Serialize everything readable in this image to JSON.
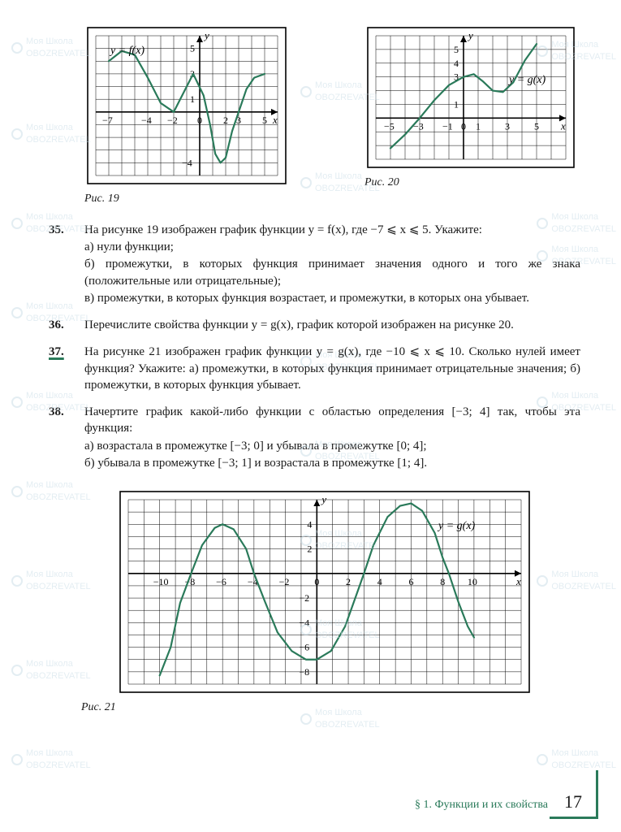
{
  "watermark": {
    "line1": "Моя Школа",
    "line2": "OBOZREVATEL"
  },
  "chart19": {
    "type": "line",
    "caption": "Рис. 19",
    "function_label": "y = f(x)",
    "x_ticks": [
      "−7",
      "−4",
      "−2",
      "0",
      "2",
      "3",
      "5"
    ],
    "y_ticks": [
      "5",
      "3",
      "1",
      "−4"
    ],
    "xlabel": "x",
    "ylabel": "y",
    "xlim": [
      -8,
      6
    ],
    "ylim": [
      -5,
      6
    ],
    "grid_color": "#000000",
    "curve_color": "#2a7a5a",
    "points": [
      [
        -7,
        4
      ],
      [
        -6,
        4.8
      ],
      [
        -5,
        4.5
      ],
      [
        -4,
        2.7
      ],
      [
        -3,
        0.7
      ],
      [
        -2,
        0
      ],
      [
        -1.2,
        1.6
      ],
      [
        -0.5,
        3
      ],
      [
        0.3,
        1.3
      ],
      [
        0.8,
        -1
      ],
      [
        1.2,
        -3.3
      ],
      [
        1.6,
        -4
      ],
      [
        2,
        -3.6
      ],
      [
        2.5,
        -1.5
      ],
      [
        3,
        0
      ],
      [
        3.6,
        1.8
      ],
      [
        4.2,
        2.7
      ],
      [
        5,
        3
      ]
    ]
  },
  "chart20": {
    "type": "line",
    "caption": "Рис. 20",
    "function_label": "y = g(x)",
    "x_ticks": [
      "−5",
      "−3",
      "−1",
      "0",
      "1",
      "3",
      "5"
    ],
    "y_ticks": [
      "5",
      "4",
      "3",
      "1"
    ],
    "xlabel": "x",
    "ylabel": "y",
    "xlim": [
      -6,
      7
    ],
    "ylim": [
      -3,
      6
    ],
    "grid_color": "#000000",
    "curve_color": "#2a7a5a",
    "points": [
      [
        -5,
        -2.2
      ],
      [
        -4,
        -1.2
      ],
      [
        -3,
        0
      ],
      [
        -2,
        1.3
      ],
      [
        -1,
        2.4
      ],
      [
        0,
        3
      ],
      [
        0.7,
        3.2
      ],
      [
        1.3,
        2.7
      ],
      [
        2,
        2
      ],
      [
        2.7,
        1.9
      ],
      [
        3.4,
        2.6
      ],
      [
        4.2,
        4.2
      ],
      [
        5,
        5.4
      ]
    ]
  },
  "chart21": {
    "type": "line",
    "caption": "Рис. 21",
    "function_label": "y = g(x)",
    "x_ticks": [
      "−10",
      "−8",
      "−6",
      "−4",
      "−2",
      "0",
      "2",
      "4",
      "6",
      "8",
      "10"
    ],
    "y_ticks": [
      "4",
      "2",
      "−2",
      "−4",
      "−6",
      "−8"
    ],
    "xlabel": "x",
    "ylabel": "y",
    "xlim": [
      -12,
      13
    ],
    "ylim": [
      -9,
      6
    ],
    "grid_color": "#000000",
    "curve_color": "#2a7a5a",
    "points": [
      [
        -10,
        -8.3
      ],
      [
        -9.3,
        -6
      ],
      [
        -8.7,
        -2.4
      ],
      [
        -8,
        0
      ],
      [
        -7.3,
        2.3
      ],
      [
        -6.5,
        3.7
      ],
      [
        -6,
        4
      ],
      [
        -5.3,
        3.6
      ],
      [
        -4.5,
        2
      ],
      [
        -4,
        0
      ],
      [
        -3.3,
        -2.3
      ],
      [
        -2.5,
        -4.8
      ],
      [
        -1.6,
        -6.3
      ],
      [
        -0.7,
        -7
      ],
      [
        0,
        -7
      ],
      [
        0.9,
        -6.3
      ],
      [
        1.8,
        -4.3
      ],
      [
        2.5,
        -1.8
      ],
      [
        3,
        0
      ],
      [
        3.6,
        2.3
      ],
      [
        4.5,
        4.6
      ],
      [
        5.3,
        5.5
      ],
      [
        6,
        5.7
      ],
      [
        6.7,
        5.1
      ],
      [
        7.5,
        3.3
      ],
      [
        8,
        1.3
      ],
      [
        8.4,
        0
      ],
      [
        9,
        -2.3
      ],
      [
        9.6,
        -4.3
      ],
      [
        10,
        -5.2
      ]
    ]
  },
  "problems": {
    "p35": {
      "num": "35.",
      "intro": "На рисунке 19 изображен график функции y = f(x), где −7 ⩽ x ⩽ 5. Укажите:",
      "a": "а) нули функции;",
      "b": "б) промежутки, в которых функция принимает значения одного и того же знака (положительные или отрицательные);",
      "c": "в) промежутки, в которых функция возрастает, и промежутки, в которых она убывает."
    },
    "p36": {
      "num": "36.",
      "text": "Перечислите свойства функции y = g(x), график которой изображен на рисунке 20."
    },
    "p37": {
      "num": "37.",
      "text": "На рисунке 21 изображен график функции y = g(x), где −10 ⩽ x ⩽ 10. Сколько нулей имеет функция? Укажите: а) промежутки, в которых функция принимает отрицательные значения; б) промежутки, в которых функция убывает."
    },
    "p38": {
      "num": "38.",
      "intro": "Начертите график какой-либо функции с областью определения [−3; 4] так, чтобы эта функция:",
      "a": "а) возрастала в промежутке [−3; 0] и убывала в промежутке [0; 4];",
      "b": "б) убывала в промежутке [−3; 1] и возрастала в промежутке [1; 4]."
    }
  },
  "footer": {
    "section": "§ 1. Функции и их свойства",
    "page": "17"
  }
}
